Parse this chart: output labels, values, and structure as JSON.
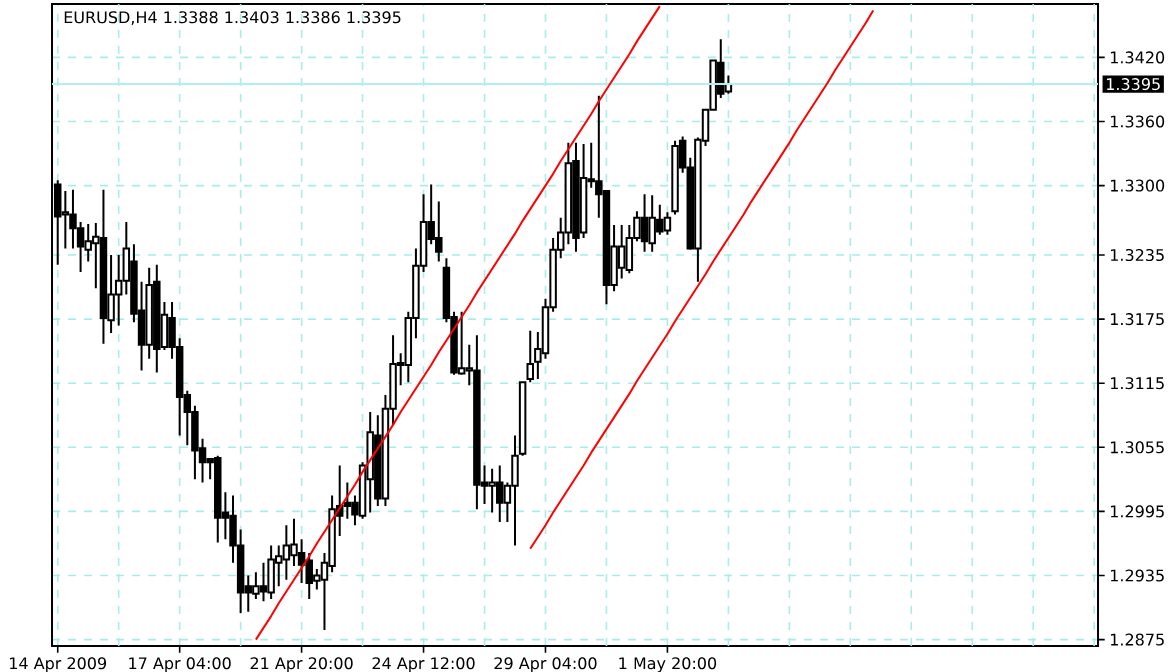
{
  "chart_data": {
    "type": "candlestick",
    "title": "EURUSD,H4  1.3388 1.3403 1.3386 1.3395",
    "color": "#000000",
    "categories": [
      "14 Apr 2009",
      null,
      null,
      null,
      null,
      null,
      null,
      null,
      null,
      null,
      null,
      null,
      null,
      null,
      null,
      null,
      "17 Apr 04:00",
      null,
      null,
      null,
      null,
      null,
      null,
      null,
      null,
      null,
      null,
      null,
      null,
      null,
      null,
      null,
      "21 Apr 20:00",
      null,
      null,
      null,
      null,
      null,
      null,
      null,
      null,
      null,
      null,
      null,
      null,
      null,
      null,
      null,
      "24 Apr 12:00",
      null,
      null,
      null,
      null,
      null,
      null,
      null,
      null,
      null,
      null,
      null,
      null,
      null,
      null,
      null,
      "29 Apr 04:00",
      null,
      null,
      null,
      null,
      null,
      null,
      null,
      null,
      null,
      null,
      null,
      null,
      null,
      null,
      null,
      "1 May 20:00",
      null,
      null,
      null,
      null,
      null,
      null,
      null,
      null,
      null,
      null,
      null,
      null,
      null,
      null,
      null,
      null,
      null,
      null,
      null,
      null,
      null,
      null,
      null,
      null,
      null,
      null,
      null,
      null,
      null,
      null,
      null,
      null,
      null,
      null,
      null,
      null,
      null,
      null,
      null,
      null,
      null,
      null,
      null,
      null,
      null,
      null,
      null,
      null,
      null,
      null,
      null,
      null,
      null,
      null,
      null,
      null
    ],
    "ohlc": [
      [
        1.3301,
        1.3305,
        1.3226,
        1.3271
      ],
      [
        1.3273,
        1.3295,
        1.3241,
        1.3275
      ],
      [
        1.3273,
        1.3296,
        1.3241,
        1.326
      ],
      [
        1.326,
        1.3266,
        1.3219,
        1.3243
      ],
      [
        1.324,
        1.3264,
        1.3229,
        1.3248
      ],
      [
        1.3246,
        1.3265,
        1.3204,
        1.3252
      ],
      [
        1.3251,
        1.3296,
        1.3152,
        1.3176
      ],
      [
        1.3174,
        1.3235,
        1.3162,
        1.3198
      ],
      [
        1.3198,
        1.3235,
        1.3169,
        1.3211
      ],
      [
        1.3211,
        1.3266,
        1.3198,
        1.3241
      ],
      [
        1.3229,
        1.3245,
        1.3172,
        1.318
      ],
      [
        1.3183,
        1.321,
        1.3127,
        1.3151
      ],
      [
        1.3151,
        1.3223,
        1.3138,
        1.3207
      ],
      [
        1.321,
        1.3226,
        1.3125,
        1.3147
      ],
      [
        1.3149,
        1.3191,
        1.3146,
        1.3179
      ],
      [
        1.3176,
        1.3191,
        1.3138,
        1.3149
      ],
      [
        1.3149,
        1.3157,
        1.3066,
        1.3102
      ],
      [
        1.3104,
        1.3108,
        1.3057,
        1.3088
      ],
      [
        1.3088,
        1.3094,
        1.3025,
        1.3052
      ],
      [
        1.3054,
        1.3063,
        1.3022,
        1.3041
      ],
      [
        1.3044,
        1.3045,
        1.3025,
        1.3041
      ],
      [
        1.3045,
        1.3047,
        1.2966,
        1.2989
      ],
      [
        1.2994,
        1.3013,
        1.2969,
        1.2989
      ],
      [
        1.2991,
        1.301,
        1.2947,
        1.2963
      ],
      [
        1.2963,
        1.2978,
        1.29,
        1.2919
      ],
      [
        1.2925,
        1.2935,
        1.2901,
        1.2919
      ],
      [
        1.2918,
        1.2938,
        1.2913,
        1.2925
      ],
      [
        1.2925,
        1.2947,
        1.2911,
        1.292
      ],
      [
        1.2919,
        1.2963,
        1.2913,
        1.295
      ],
      [
        1.2947,
        1.2963,
        1.2925,
        1.2953
      ],
      [
        1.295,
        1.2982,
        1.2931,
        1.2963
      ],
      [
        1.2954,
        1.2988,
        1.2944,
        1.2964
      ],
      [
        1.2956,
        1.2969,
        1.2928,
        1.2945
      ],
      [
        1.2949,
        1.2956,
        1.2913,
        1.2928
      ],
      [
        1.293,
        1.2941,
        1.2922,
        1.2935
      ],
      [
        1.2931,
        1.2956,
        1.2884,
        1.2947
      ],
      [
        1.2944,
        1.301,
        1.2938,
        1.2997
      ],
      [
        1.3,
        1.3038,
        1.2972,
        1.2991
      ],
      [
        1.3003,
        1.3022,
        1.2988,
        1.3
      ],
      [
        1.3003,
        1.301,
        1.2982,
        1.2992
      ],
      [
        1.2991,
        1.3041,
        1.2988,
        1.3038
      ],
      [
        1.3025,
        1.3088,
        1.2994,
        1.3069
      ],
      [
        1.3066,
        1.3085,
        1.3,
        1.3007
      ],
      [
        1.3007,
        1.3104,
        1.3,
        1.3091
      ],
      [
        1.3091,
        1.316,
        1.3076,
        1.3133
      ],
      [
        1.3132,
        1.3143,
        1.3113,
        1.3134
      ],
      [
        1.3132,
        1.3182,
        1.3116,
        1.3176
      ],
      [
        1.3176,
        1.3241,
        1.3157,
        1.3225
      ],
      [
        1.3225,
        1.3292,
        1.3219,
        1.3266
      ],
      [
        1.3266,
        1.3301,
        1.3245,
        1.325
      ],
      [
        1.3251,
        1.3285,
        1.3229,
        1.3238
      ],
      [
        1.3223,
        1.3232,
        1.3172,
        1.3176
      ],
      [
        1.3177,
        1.3182,
        1.3123,
        1.3125
      ],
      [
        1.3124,
        1.3182,
        1.3123,
        1.3129
      ],
      [
        1.3127,
        1.3151,
        1.3113,
        1.3129
      ],
      [
        1.3127,
        1.316,
        1.2997,
        1.302
      ],
      [
        1.3022,
        1.3038,
        1.3002,
        1.3019
      ],
      [
        1.3019,
        1.3035,
        1.2994,
        1.3022
      ],
      [
        1.3022,
        1.3038,
        1.2985,
        1.3003
      ],
      [
        1.3003,
        1.3022,
        1.2985,
        1.3019
      ],
      [
        1.3019,
        1.3066,
        1.2963,
        1.3047
      ],
      [
        1.3049,
        1.3116,
        1.3047,
        1.3116
      ],
      [
        1.3119,
        1.3164,
        1.3116,
        1.3133
      ],
      [
        1.3135,
        1.3163,
        1.3119,
        1.3147
      ],
      [
        1.3143,
        1.3194,
        1.3138,
        1.3186
      ],
      [
        1.3186,
        1.3251,
        1.3182,
        1.324
      ],
      [
        1.324,
        1.327,
        1.3232,
        1.3256
      ],
      [
        1.3256,
        1.334,
        1.3245,
        1.3321
      ],
      [
        1.3323,
        1.334,
        1.3238,
        1.3251
      ],
      [
        1.3256,
        1.3339,
        1.3251,
        1.3307
      ],
      [
        1.3306,
        1.334,
        1.3298,
        1.3304
      ],
      [
        1.3304,
        1.3384,
        1.327,
        1.3292
      ],
      [
        1.3295,
        1.3295,
        1.3189,
        1.3207
      ],
      [
        1.3207,
        1.3263,
        1.3201,
        1.3243
      ],
      [
        1.3223,
        1.3263,
        1.3213,
        1.3243
      ],
      [
        1.3221,
        1.3263,
        1.3218,
        1.3251
      ],
      [
        1.3251,
        1.3276,
        1.3248,
        1.327
      ],
      [
        1.327,
        1.3292,
        1.3238,
        1.3248
      ],
      [
        1.3246,
        1.3291,
        1.3238,
        1.327
      ],
      [
        1.3268,
        1.3282,
        1.3254,
        1.3257
      ],
      [
        1.3258,
        1.3275,
        1.3254,
        1.327
      ],
      [
        1.3276,
        1.3342,
        1.3273,
        1.3337
      ],
      [
        1.3342,
        1.3346,
        1.3312,
        1.3317
      ],
      [
        1.3317,
        1.3326,
        1.324,
        1.3241
      ],
      [
        1.3241,
        1.3345,
        1.321,
        1.3343
      ],
      [
        1.3342,
        1.3371,
        1.3337,
        1.3371
      ],
      [
        1.3371,
        1.3417,
        1.337,
        1.3417
      ],
      [
        1.3415,
        1.3437,
        1.3382,
        1.3386
      ],
      [
        1.3388,
        1.3403,
        1.3386,
        1.3395
      ],
      null,
      null,
      null,
      null,
      null,
      null,
      null,
      null,
      null,
      null,
      null,
      null,
      null,
      null,
      null,
      null,
      null,
      null,
      null,
      null,
      null,
      null,
      null,
      null,
      null,
      null,
      null,
      null,
      null,
      null,
      null,
      null,
      null,
      null,
      null,
      null,
      null,
      null,
      null,
      null,
      null,
      null,
      null,
      null,
      null,
      null,
      null,
      null
    ],
    "series": [
      {
        "type": "line",
        "color": "#ff0000",
        "values": [
          null,
          null,
          null,
          null,
          null,
          null,
          null,
          null,
          null,
          null,
          null,
          null,
          null,
          null,
          null,
          null,
          null,
          null,
          null,
          null,
          null,
          null,
          null,
          null,
          null,
          null,
          1.2875,
          1.2886,
          1.2897,
          1.2909,
          1.292,
          1.2931,
          1.2942,
          1.2953,
          1.2965,
          1.2976,
          1.2987,
          1.2998,
          1.3009,
          1.302,
          1.3032,
          1.3043,
          1.3054,
          1.3065,
          1.3076,
          1.3088,
          1.3099,
          1.311,
          1.3121,
          1.3132,
          1.3144,
          1.3155,
          1.3166,
          1.3177,
          1.3188,
          1.32,
          1.3211,
          1.3222,
          1.3233,
          1.3244,
          1.3255,
          1.3267,
          1.3278,
          1.3289,
          1.33,
          1.3311,
          1.3323,
          1.3334,
          1.3345,
          1.3356,
          1.3367,
          1.3379,
          1.339,
          1.3401,
          1.3412,
          1.3423,
          1.3435,
          1.3446,
          1.3457,
          1.3468,
          null,
          null,
          null,
          null,
          null,
          null,
          null,
          null,
          null,
          null,
          null,
          null,
          null,
          null,
          null,
          null,
          null,
          null,
          null,
          null,
          null,
          null,
          null,
          null,
          null,
          null,
          null,
          null,
          null,
          null,
          null,
          null,
          null,
          null,
          null,
          null,
          null,
          null,
          null,
          null,
          null,
          null,
          null,
          null,
          null,
          null,
          null,
          null,
          null,
          null,
          null,
          null,
          null,
          null,
          null,
          null,
          null
        ]
      },
      {
        "type": "line",
        "color": "#ff0000",
        "values": [
          null,
          null,
          null,
          null,
          null,
          null,
          null,
          null,
          null,
          null,
          null,
          null,
          null,
          null,
          null,
          null,
          null,
          null,
          null,
          null,
          null,
          null,
          null,
          null,
          null,
          null,
          null,
          null,
          null,
          null,
          null,
          null,
          null,
          null,
          null,
          null,
          null,
          null,
          null,
          null,
          null,
          null,
          null,
          null,
          null,
          null,
          null,
          null,
          null,
          null,
          null,
          null,
          null,
          null,
          null,
          null,
          null,
          null,
          null,
          null,
          null,
          null,
          1.296,
          1.2971,
          1.2982,
          1.2994,
          1.3005,
          1.3016,
          1.3027,
          1.3038,
          1.305,
          1.3061,
          1.3072,
          1.3083,
          1.3094,
          1.3105,
          1.3117,
          1.3128,
          1.3139,
          1.315,
          1.3161,
          1.3173,
          1.3184,
          1.3195,
          1.3206,
          1.3217,
          1.3229,
          1.324,
          1.3251,
          1.3262,
          1.3273,
          1.3285,
          1.3296,
          1.3307,
          1.3318,
          1.3329,
          1.334,
          1.3352,
          1.3363,
          1.3374,
          1.3385,
          1.3396,
          1.3408,
          1.3419,
          1.343,
          1.3441,
          1.3452,
          1.3464,
          null,
          null,
          null,
          null,
          null,
          null,
          null,
          null,
          null,
          null,
          null,
          null,
          null,
          null,
          null,
          null,
          null,
          null,
          null,
          null,
          null,
          null,
          null,
          null,
          null,
          null,
          null,
          null,
          null
        ]
      }
    ],
    "ylim": [
      1.2869,
      1.347
    ],
    "yticks": [
      1.2875,
      1.2935,
      1.2995,
      1.3055,
      1.3115,
      1.3175,
      1.3235,
      {
        "value": 1.33,
        "label": "1.3300"
      },
      {
        "value": 1.336,
        "label": "1.3360"
      },
      {
        "value": 1.342,
        "label": "1.3420"
      }
    ],
    "ref_lines": [
      {
        "axis": "y",
        "value": 1.3395,
        "label": "1.3395",
        "color": "#b0f0f0"
      }
    ],
    "grid": true
  }
}
